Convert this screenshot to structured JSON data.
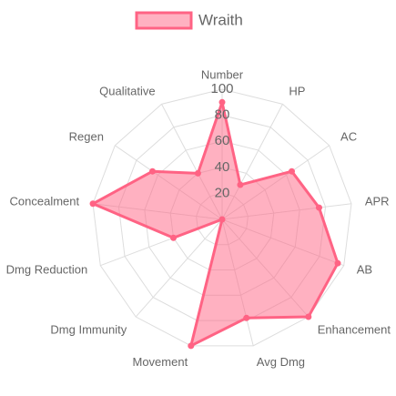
{
  "chart_data": {
    "type": "radar",
    "categories": [
      "Number",
      "HP",
      "AC",
      "APR",
      "AB",
      "Enhancement",
      "Avg Dmg",
      "Movement",
      "Dmg Immunity",
      "Dmg Reduction",
      "Concealment",
      "Regen",
      "Qualitative"
    ],
    "series": [
      {
        "name": "Wraith",
        "color": "#ff6384",
        "values": [
          90,
          30,
          65,
          75,
          95,
          100,
          78,
          100,
          0,
          40,
          100,
          65,
          40
        ]
      }
    ],
    "ylim": [
      0,
      100
    ],
    "yticks": [
      20,
      40,
      60,
      80,
      100
    ],
    "grid": true,
    "legend": "top"
  }
}
